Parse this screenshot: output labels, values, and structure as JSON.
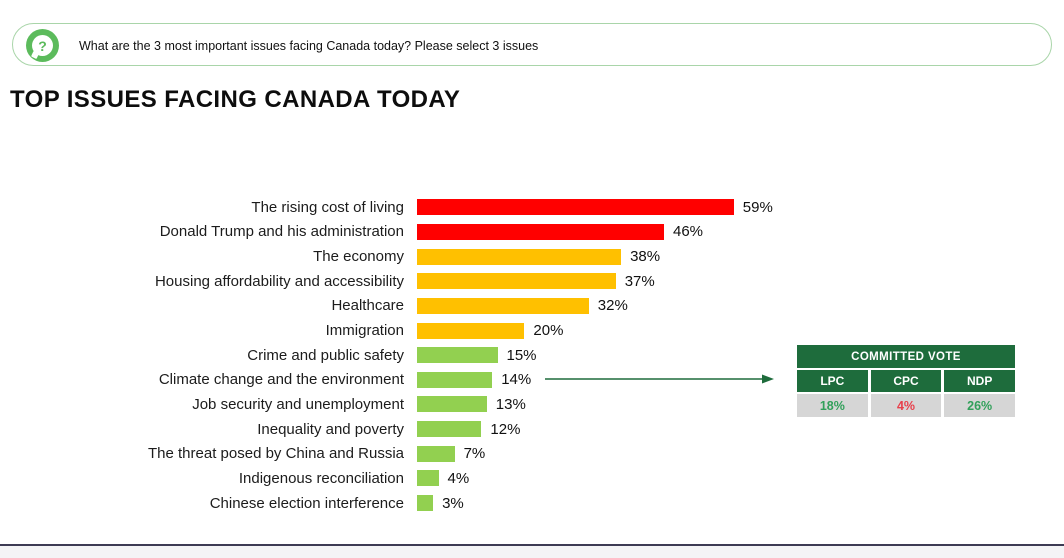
{
  "banner": {
    "icon": "question-mark-icon",
    "question_mark": "?",
    "text": "What are the 3 most important issues facing Canada today? Please select 3 issues"
  },
  "title": "TOP ISSUES FACING CANADA TODAY",
  "chart_data": {
    "type": "bar",
    "orientation": "horizontal",
    "title": "TOP ISSUES FACING CANADA TODAY",
    "unit": "%",
    "xlim": [
      0,
      59
    ],
    "grid": false,
    "categories": [
      "The rising cost of living",
      "Donald Trump and his administration",
      "The economy",
      "Housing affordability and accessibility",
      "Healthcare",
      "Immigration",
      "Crime and public safety",
      "Climate change and the environment",
      "Job security and unemployment",
      "Inequality and poverty",
      "The threat posed by China and Russia",
      "Indigenous reconciliation",
      "Chinese election interference"
    ],
    "values": [
      59,
      46,
      38,
      37,
      32,
      20,
      15,
      14,
      13,
      12,
      7,
      4,
      3
    ],
    "value_labels": [
      "59%",
      "46%",
      "38%",
      "37%",
      "32%",
      "20%",
      "15%",
      "14%",
      "13%",
      "12%",
      "7%",
      "4%",
      "3%"
    ],
    "bar_colors": [
      "#FF0000",
      "#FF0000",
      "#FFC000",
      "#FFC000",
      "#FFC000",
      "#FFC000",
      "#92D050",
      "#92D050",
      "#92D050",
      "#92D050",
      "#92D050",
      "#92D050",
      "#92D050"
    ],
    "annotation": {
      "target_category": "Climate change and the environment",
      "connector": "arrow-to-committed-vote-table"
    }
  },
  "committed_vote": {
    "title": "COMMITTED VOTE",
    "columns": [
      "LPC",
      "CPC",
      "NDP"
    ],
    "values": [
      "18%",
      "4%",
      "26%"
    ],
    "value_colors": [
      "#31A05A",
      "#E8404B",
      "#31A05A"
    ]
  },
  "theme": {
    "dark_green": "#1E6C3C",
    "banner_border": "#A9D5A9",
    "icon_green": "#5CBB5C",
    "table_gray": "#D6D6D6",
    "footer_line": "#3D3B54",
    "footer_strip": "#F4F4F6",
    "red": "#FF0000",
    "gold": "#FFC000",
    "light_green": "#92D050"
  }
}
